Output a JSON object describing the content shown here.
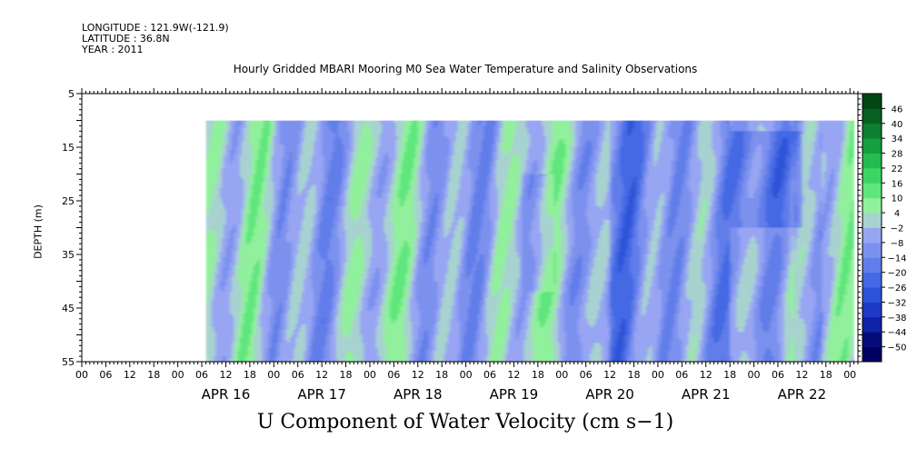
{
  "header": {
    "longitude": "LONGITUDE : 121.9W(-121.9)",
    "latitude": "LATITUDE : 36.8N",
    "year": "YEAR : 2011"
  },
  "title": "Hourly Gridded MBARI Mooring M0 Sea Water Temperature and Salinity Observations",
  "variable_label": "U Component of Water Velocity (cm s−1)",
  "chart_data": {
    "type": "heatmap",
    "title": "Hourly Gridded MBARI Mooring M0 Sea Water Temperature and Salinity Observations",
    "xlabel": "",
    "ylabel": "DEPTH (m)",
    "ylim": [
      55,
      5
    ],
    "y_ticks": [
      5,
      15,
      25,
      35,
      45,
      55
    ],
    "y_data_range": [
      10,
      55
    ],
    "x_start": "2011-04-15 00:00",
    "x_end": "2011-04-23 02:00",
    "x_data_start": "2011-04-16 07:00",
    "x_data_end": "2011-04-23 01:00",
    "x_hour_tick_labels": [
      "00",
      "06",
      "12",
      "18",
      "00",
      "06",
      "12",
      "18",
      "00",
      "06",
      "12",
      "18",
      "00",
      "06",
      "12",
      "18",
      "00",
      "06",
      "12",
      "18",
      "00",
      "06",
      "12",
      "18",
      "00",
      "06",
      "12",
      "18",
      "00",
      "06",
      "12",
      "18",
      "00"
    ],
    "x_date_labels": [
      "APR 16",
      "APR 17",
      "APR 18",
      "APR 19",
      "APR 20",
      "APR 21",
      "APR 22"
    ],
    "colorbar": {
      "levels": [
        -50,
        -44,
        -38,
        -32,
        -26,
        -20,
        -14,
        -8,
        -2,
        4,
        10,
        16,
        22,
        28,
        34,
        40,
        46
      ],
      "units": "cm s−1"
    },
    "grid": false,
    "legend": "colorbar-right",
    "series_note": "Alternating bands of positive (green, ~4 to 22) and negative (blue, ~-2 to -26) U velocity through the water column over time"
  }
}
